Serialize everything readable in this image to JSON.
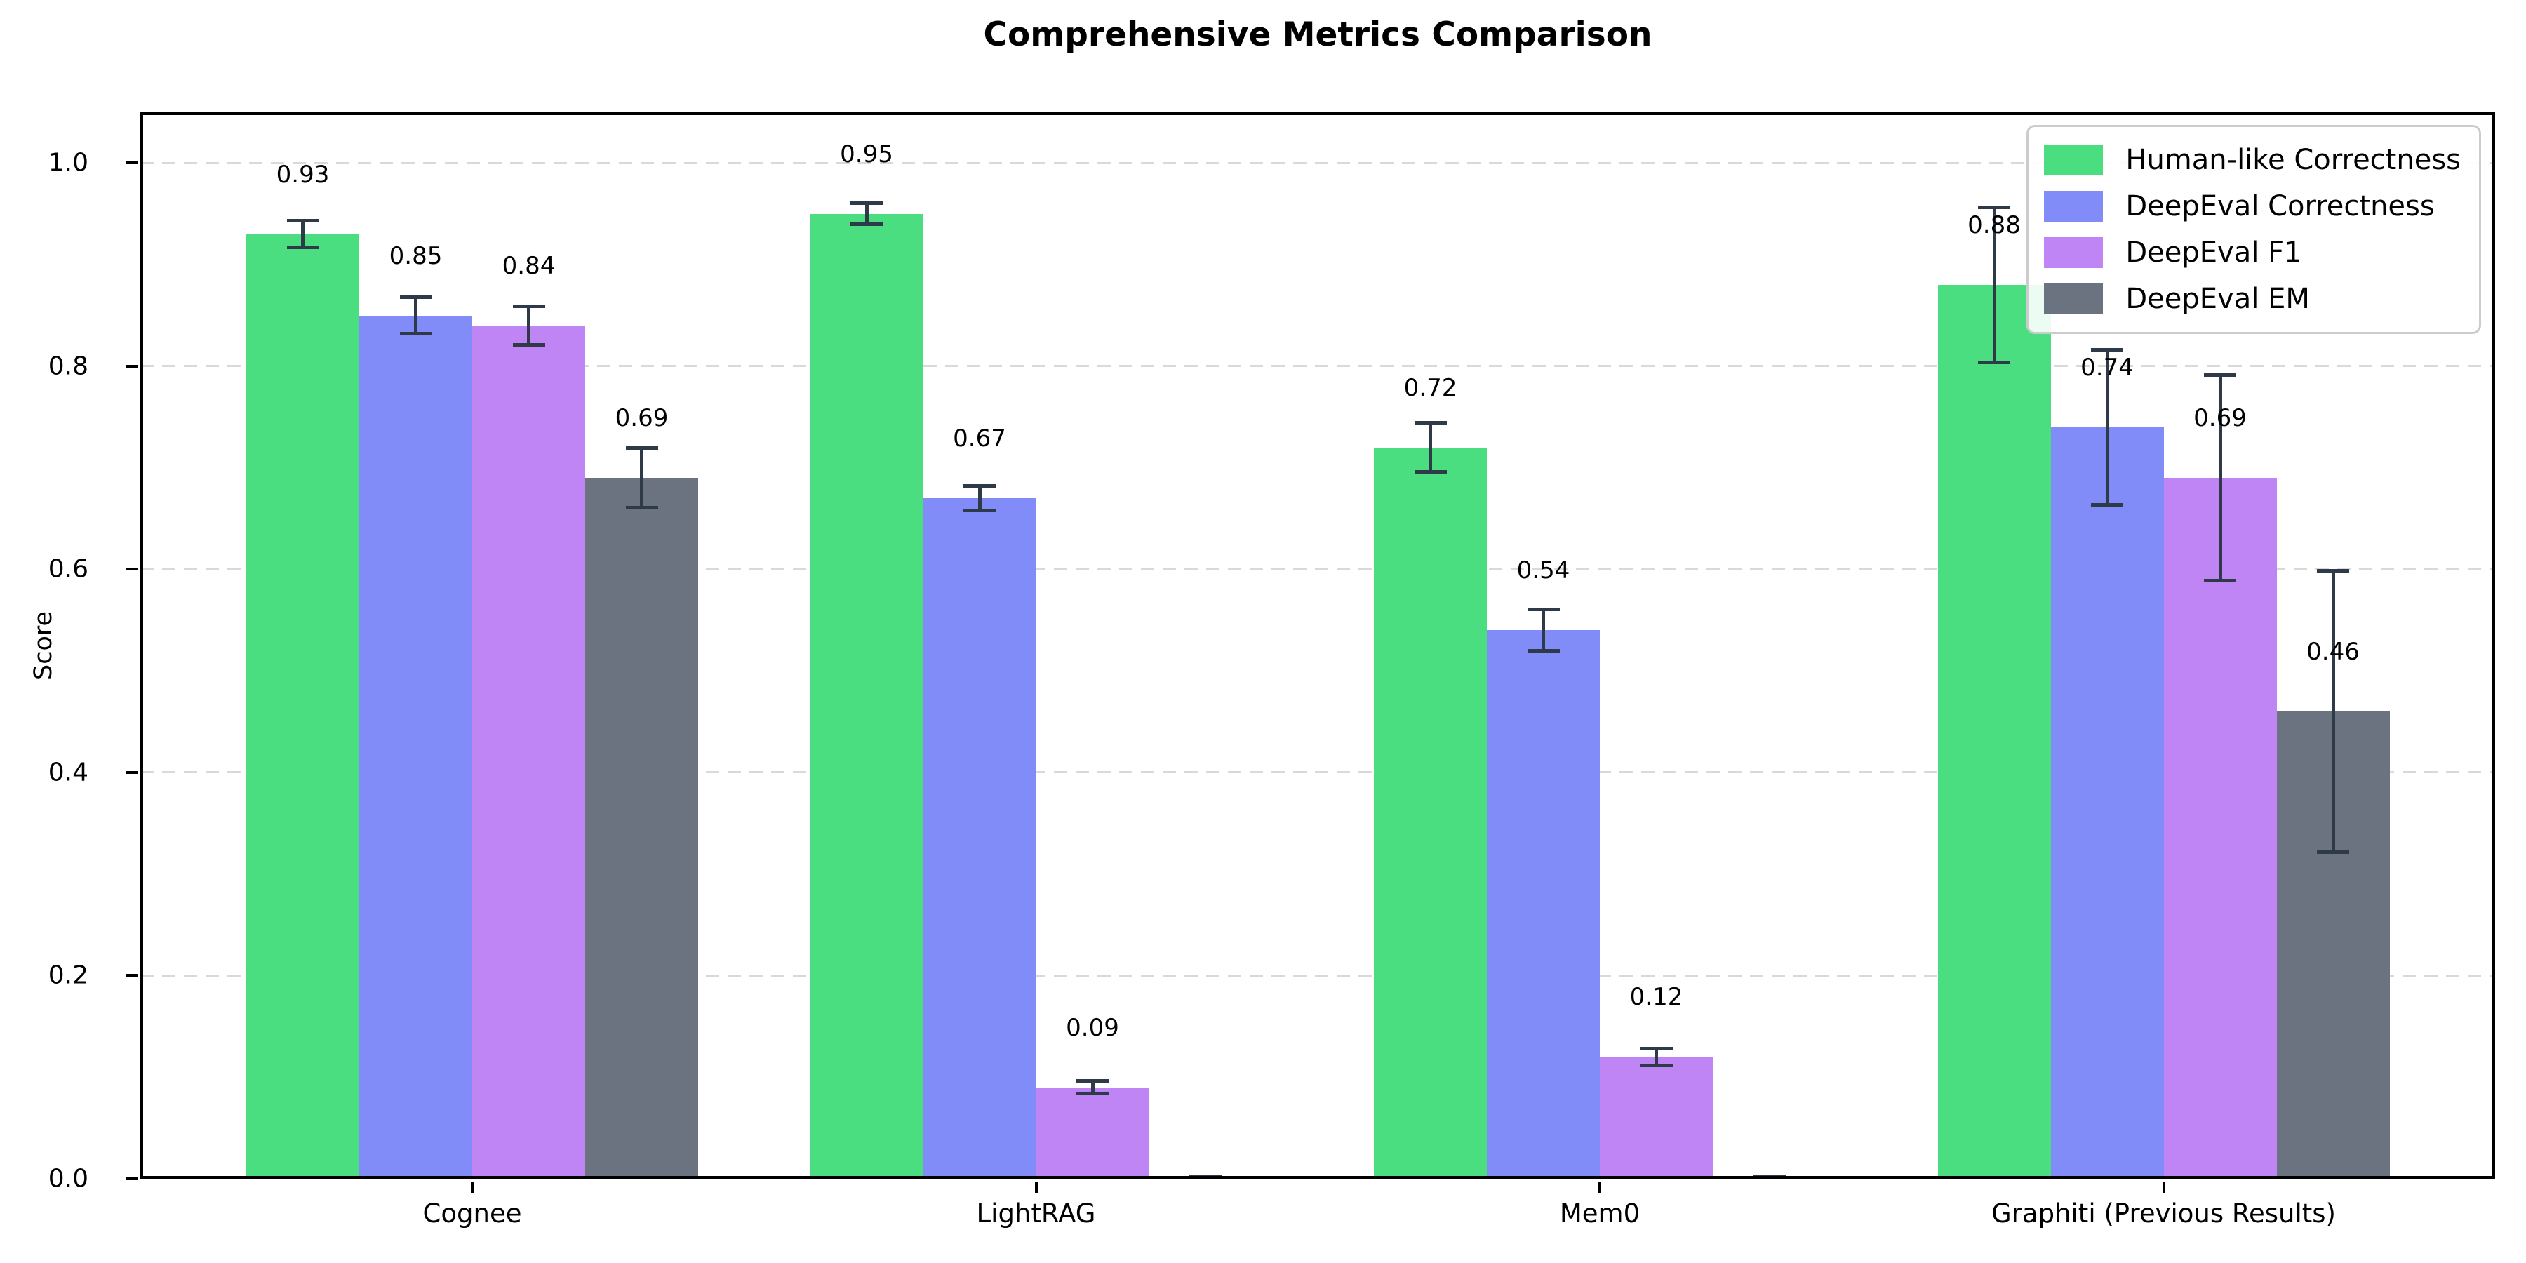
{
  "title": "Comprehensive Metrics Comparison",
  "chart_data": {
    "type": "bar",
    "title": "Comprehensive Metrics Comparison",
    "xlabel": "",
    "ylabel": "Score",
    "categories": [
      "Cognee",
      "LightRAG",
      "Mem0",
      "Graphiti (Previous Results)"
    ],
    "series": [
      {
        "name": "Human-like Correctness",
        "color": "#4ade80",
        "values": [
          0.93,
          0.95,
          0.72,
          0.88
        ],
        "errors": [
          0.015,
          0.012,
          0.026,
          0.078
        ],
        "labels": [
          "0.93",
          "0.95",
          "0.72",
          "0.88"
        ]
      },
      {
        "name": "DeepEval Correctness",
        "color": "#818cf8",
        "values": [
          0.85,
          0.67,
          0.54,
          0.74
        ],
        "errors": [
          0.02,
          0.014,
          0.022,
          0.078
        ],
        "labels": [
          "0.85",
          "0.67",
          "0.54",
          "0.74"
        ]
      },
      {
        "name": "DeepEval F1",
        "color": "#bf85f5",
        "values": [
          0.84,
          0.09,
          0.12,
          0.69
        ],
        "errors": [
          0.021,
          0.008,
          0.01,
          0.103
        ],
        "labels": [
          "0.84",
          "0.09",
          "0.12",
          "0.69"
        ]
      },
      {
        "name": "DeepEval EM",
        "color": "#6b7280",
        "values": [
          0.69,
          0.0,
          0.0,
          0.46
        ],
        "errors": [
          0.031,
          0.004,
          0.004,
          0.14
        ],
        "labels": [
          "0.69",
          "",
          "",
          "0.46"
        ]
      }
    ],
    "y_ticks": [
      0.0,
      0.2,
      0.4,
      0.6,
      0.8,
      1.0
    ],
    "y_tick_labels": [
      "0.0",
      "0.2",
      "0.4",
      "0.6",
      "0.8",
      "1.0"
    ],
    "ylim": [
      0,
      1.05
    ],
    "grid": "horizontal-dashed",
    "grid_color": "#d9d9d9",
    "error_bar_color": "#2e3a47",
    "legend_position": "upper right",
    "legend_entries": [
      "Human-like Correctness",
      "DeepEval Correctness",
      "DeepEval F1",
      "DeepEval EM"
    ]
  }
}
